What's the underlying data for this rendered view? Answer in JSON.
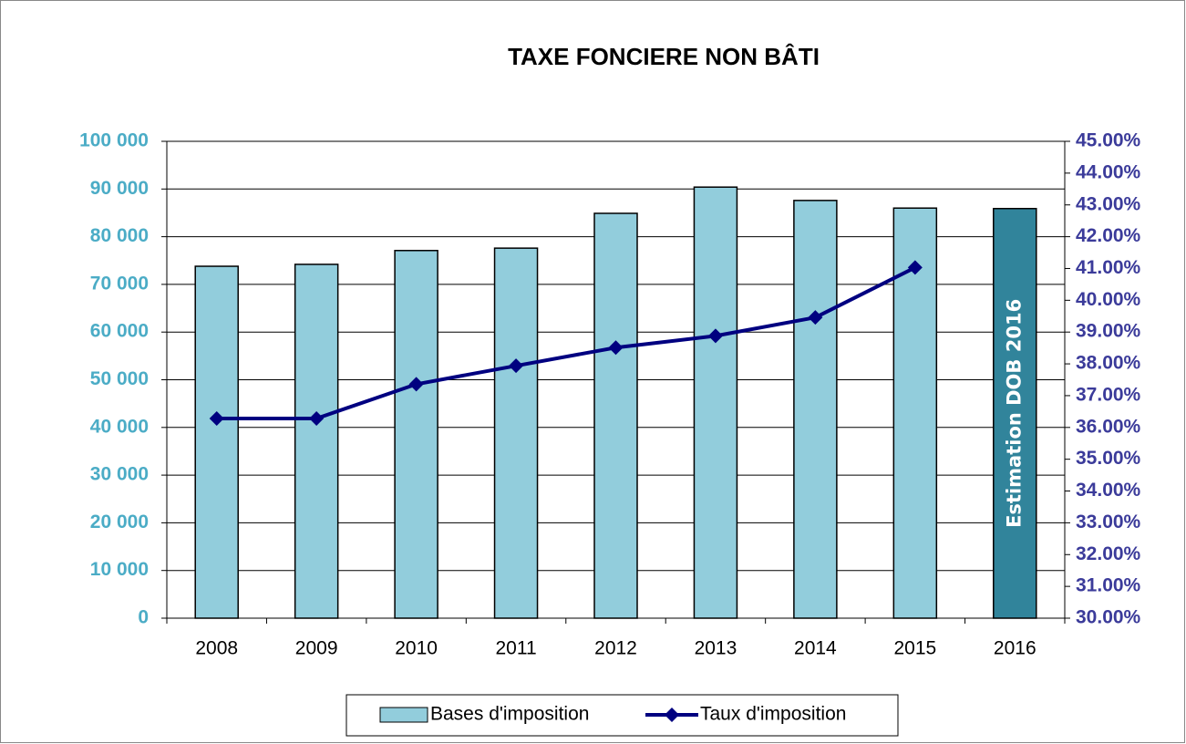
{
  "chart_data": {
    "type": "bar",
    "title": "TAXE FONCIERE NON BÂTI",
    "categories": [
      "2008",
      "2009",
      "2010",
      "2011",
      "2012",
      "2013",
      "2014",
      "2015",
      "2016"
    ],
    "series": [
      {
        "name": "Bases d'imposition",
        "type": "bar",
        "axis": "y",
        "color": "#92cddc",
        "colors": [
          "#92cddc",
          "#92cddc",
          "#92cddc",
          "#92cddc",
          "#92cddc",
          "#92cddc",
          "#92cddc",
          "#92cddc",
          "#31849b"
        ],
        "values": [
          73800,
          74200,
          77100,
          77600,
          84900,
          90400,
          87600,
          86000,
          85900
        ]
      },
      {
        "name": "Taux d'imposition",
        "type": "line",
        "axis": "y2",
        "color": "#000080",
        "values": [
          36.28,
          36.28,
          37.36,
          37.94,
          38.51,
          38.88,
          39.46,
          41.03,
          null
        ]
      }
    ],
    "annotation": "Estimation DOB 2016",
    "ylim": [
      0,
      100000
    ],
    "yticks": [
      0,
      {
        "value": 10000,
        "label": "10 000"
      },
      {
        "value": 20000,
        "label": "20 000"
      },
      {
        "value": 30000,
        "label": "30 000"
      },
      {
        "value": 40000,
        "label": "40 000"
      },
      {
        "value": 50000,
        "label": "50 000"
      },
      {
        "value": 60000,
        "label": "60 000"
      },
      {
        "value": 70000,
        "label": "70 000"
      },
      {
        "value": 80000,
        "label": "80 000"
      },
      {
        "value": 90000,
        "label": "90 000"
      },
      {
        "value": 100000,
        "label": "100 000"
      }
    ],
    "y2lim": [
      30,
      45
    ],
    "y2ticks": [
      {
        "value": 30,
        "label": "30.00%"
      },
      {
        "value": 31,
        "label": "31.00%"
      },
      {
        "value": 32,
        "label": "32.00%"
      },
      {
        "value": 33,
        "label": "33.00%"
      },
      {
        "value": 34,
        "label": "34.00%"
      },
      {
        "value": 35,
        "label": "35.00%"
      },
      {
        "value": 36,
        "label": "36.00%"
      },
      {
        "value": 37,
        "label": "37.00%"
      },
      {
        "value": 38,
        "label": "38.00%"
      },
      {
        "value": 39,
        "label": "39.00%"
      },
      {
        "value": 40,
        "label": "40.00%"
      },
      {
        "value": 41,
        "label": "41.00%"
      },
      {
        "value": 42,
        "label": "42.00%"
      },
      {
        "value": 43,
        "label": "43.00%"
      },
      {
        "value": 44,
        "label": "44.00%"
      },
      {
        "value": 45,
        "label": "45.00%"
      }
    ],
    "grid": true,
    "legend": "bottom"
  }
}
